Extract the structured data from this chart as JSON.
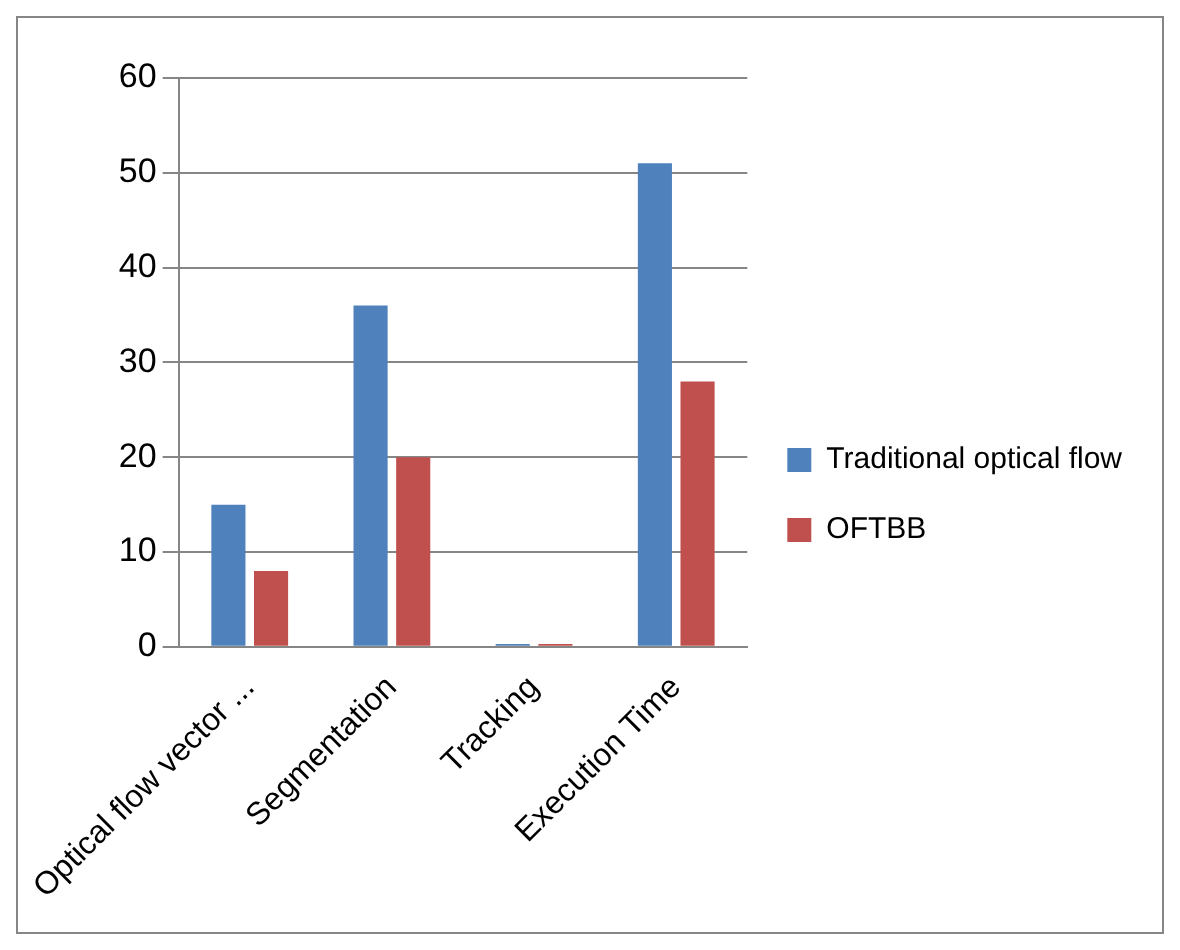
{
  "chart_data": {
    "type": "bar",
    "categories": [
      "Optical flow vector ...",
      "Segmentation",
      "Tracking",
      "Execution Time"
    ],
    "series": [
      {
        "name": "Traditional optical flow",
        "color": "#4f81bd",
        "values": [
          15,
          36,
          0.3,
          51
        ]
      },
      {
        "name": "OFTBB",
        "color": "#c0504d",
        "values": [
          8,
          20,
          0.3,
          28
        ]
      }
    ],
    "ylim": [
      0,
      60
    ],
    "yticks": [
      0,
      10,
      20,
      30,
      40,
      50,
      60
    ],
    "grid": "y",
    "legend": "right"
  }
}
